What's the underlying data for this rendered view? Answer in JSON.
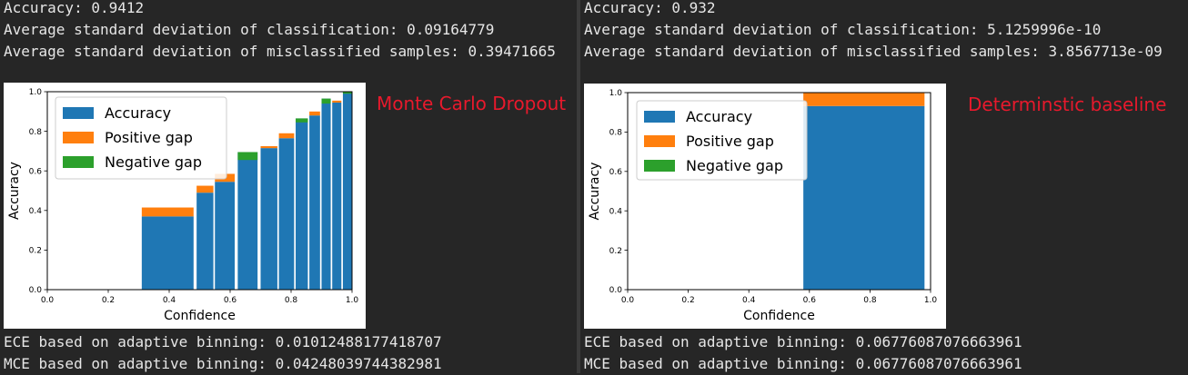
{
  "panels": [
    {
      "logs_top": [
        "Accuracy: 0.9412",
        "Average standard deviation of classification: 0.09164779",
        "Average standard deviation of misclassified samples: 0.39471665"
      ],
      "logs_bottom": [
        "ECE based on adaptive binning: 0.01012488177418707",
        "MCE based on adaptive binning: 0.04248039744382981"
      ],
      "label": "Monte Carlo Dropout"
    },
    {
      "logs_top": [
        "Accuracy: 0.932",
        "Average standard deviation of classification: 5.1259996e-10",
        "Average standard deviation of misclassified samples: 3.8567713e-09"
      ],
      "logs_bottom": [
        "ECE based on adaptive binning: 0.06776087076663961",
        "MCE based on adaptive binning: 0.06776087076663961"
      ],
      "label": "Determinstic baseline"
    }
  ],
  "colors": {
    "accuracy": "#1f77b4",
    "positive_gap": "#ff7f0e",
    "negative_gap": "#2ca02c",
    "label": "#e8192c",
    "terminal_bg": "#262626",
    "terminal_text": "#e6e6e6"
  },
  "chart_data": [
    {
      "type": "bar",
      "xlabel": "Confidence",
      "ylabel": "Accuracy",
      "xlim": [
        0,
        1
      ],
      "ylim": [
        0,
        1
      ],
      "xticks": [
        "0.0",
        "0.2",
        "0.4",
        "0.6",
        "0.8",
        "1.0"
      ],
      "yticks": [
        "0.0",
        "0.2",
        "0.4",
        "0.6",
        "0.8",
        "1.0"
      ],
      "legend": {
        "position": "top-left",
        "entries": [
          "Accuracy",
          "Positive gap",
          "Negative gap"
        ]
      },
      "bins": [
        {
          "x0": 0.31,
          "x1": 0.48,
          "accuracy": 0.37,
          "confidence": 0.415
        },
        {
          "x0": 0.49,
          "x1": 0.545,
          "accuracy": 0.49,
          "confidence": 0.525
        },
        {
          "x0": 0.55,
          "x1": 0.615,
          "accuracy": 0.545,
          "confidence": 0.585
        },
        {
          "x0": 0.625,
          "x1": 0.69,
          "accuracy": 0.695,
          "confidence": 0.655
        },
        {
          "x0": 0.7,
          "x1": 0.755,
          "accuracy": 0.715,
          "confidence": 0.725
        },
        {
          "x0": 0.76,
          "x1": 0.81,
          "accuracy": 0.765,
          "confidence": 0.79
        },
        {
          "x0": 0.815,
          "x1": 0.855,
          "accuracy": 0.865,
          "confidence": 0.845
        },
        {
          "x0": 0.86,
          "x1": 0.895,
          "accuracy": 0.88,
          "confidence": 0.9
        },
        {
          "x0": 0.9,
          "x1": 0.93,
          "accuracy": 0.965,
          "confidence": 0.94
        },
        {
          "x0": 0.935,
          "x1": 0.965,
          "accuracy": 0.945,
          "confidence": 0.955
        },
        {
          "x0": 0.97,
          "x1": 1.0,
          "accuracy": 1.0,
          "confidence": 0.99
        }
      ]
    },
    {
      "type": "bar",
      "xlabel": "Confidence",
      "ylabel": "Accuracy",
      "xlim": [
        0,
        1
      ],
      "ylim": [
        0,
        1
      ],
      "xticks": [
        "0.0",
        "0.2",
        "0.4",
        "0.6",
        "0.8",
        "1.0"
      ],
      "yticks": [
        "0.0",
        "0.2",
        "0.4",
        "0.6",
        "0.8",
        "1.0"
      ],
      "legend": {
        "position": "top-left",
        "entries": [
          "Accuracy",
          "Positive gap",
          "Negative gap"
        ]
      },
      "bins": [
        {
          "x0": 0.58,
          "x1": 0.98,
          "accuracy": 0.932,
          "confidence": 1.0
        }
      ]
    }
  ]
}
